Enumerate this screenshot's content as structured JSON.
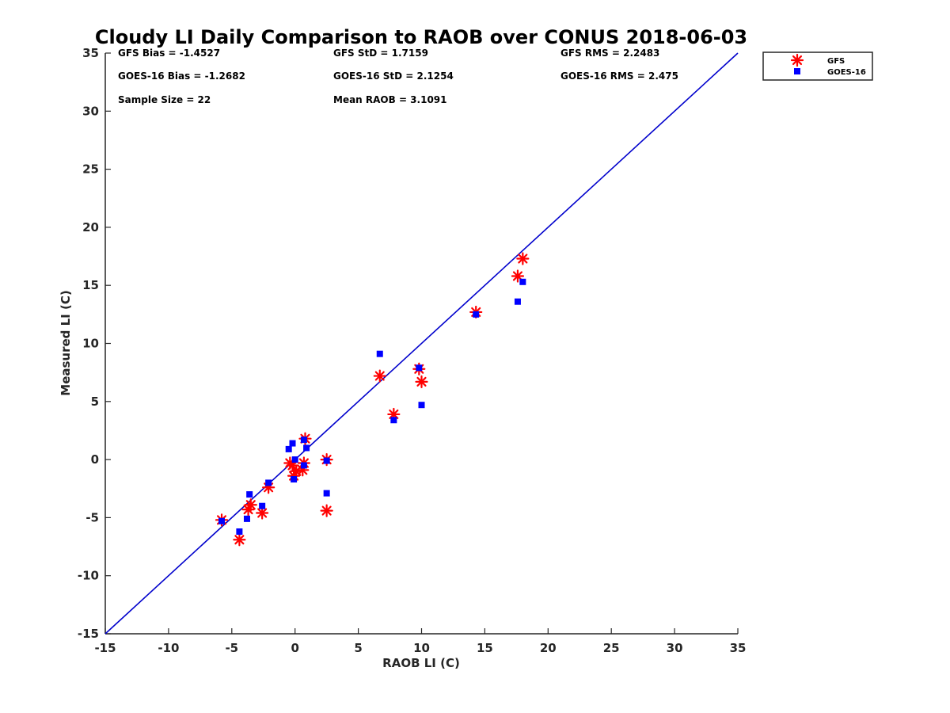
{
  "colors": {
    "gfs": "#ff0000",
    "goes": "#0000ff",
    "line": "#0000cc",
    "axis": "#262626"
  },
  "stats": {
    "gfs_bias": "GFS Bias = -1.4527",
    "gfs_std": "GFS StD = 1.7159",
    "gfs_rms": "GFS RMS = 2.2483",
    "goes_bias": "GOES-16 Bias = -1.2682",
    "goes_std": "GOES-16 StD = 2.1254",
    "goes_rms": "GOES-16 RMS = 2.475",
    "sample_size": "Sample Size = 22",
    "mean_raob": "Mean RAOB = 3.1091"
  },
  "chart_data": {
    "type": "scatter",
    "title": "Cloudy LI Daily Comparison to RAOB over CONUS 2018-06-03",
    "xlabel": "RAOB LI (C)",
    "ylabel": "Measured LI (C)",
    "xlim": [
      -15,
      35
    ],
    "ylim": [
      -15,
      35
    ],
    "xticks": [
      "-15",
      "-10",
      "-5",
      "0",
      "5",
      "10",
      "15",
      "20",
      "25",
      "30",
      "35"
    ],
    "yticks": [
      "-15",
      "-10",
      "-5",
      "0",
      "5",
      "10",
      "15",
      "20",
      "25",
      "30",
      "35"
    ],
    "grid": false,
    "legend_position": "outside-top-right",
    "reference_line": {
      "x": [
        -15,
        35
      ],
      "y": [
        -15,
        35
      ]
    },
    "series": [
      {
        "name": "GFS",
        "marker": "asterisk",
        "points": [
          [
            -5.8,
            -5.2
          ],
          [
            -4.4,
            -6.9
          ],
          [
            -3.7,
            -4.3
          ],
          [
            -3.5,
            -3.9
          ],
          [
            -2.6,
            -4.6
          ],
          [
            -2.1,
            -2.4
          ],
          [
            -0.4,
            -0.3
          ],
          [
            -0.1,
            -1.4
          ],
          [
            0.1,
            -1.0
          ],
          [
            0.6,
            -0.9
          ],
          [
            0.7,
            -0.3
          ],
          [
            0.8,
            1.8
          ],
          [
            2.5,
            0.0
          ],
          [
            2.5,
            -4.4
          ],
          [
            6.7,
            7.2
          ],
          [
            7.8,
            3.9
          ],
          [
            9.8,
            7.8
          ],
          [
            10.0,
            6.7
          ],
          [
            14.3,
            12.7
          ],
          [
            17.6,
            15.8
          ],
          [
            18.0,
            17.3
          ],
          [
            -0.2,
            -0.5
          ]
        ]
      },
      {
        "name": "GOES-16",
        "marker": "square",
        "points": [
          [
            -5.8,
            -5.3
          ],
          [
            -4.4,
            -6.2
          ],
          [
            -3.8,
            -5.1
          ],
          [
            -3.6,
            -3.0
          ],
          [
            -2.6,
            -4.0
          ],
          [
            -2.1,
            -2.0
          ],
          [
            -0.5,
            0.9
          ],
          [
            -0.2,
            1.4
          ],
          [
            -0.1,
            -1.7
          ],
          [
            0.0,
            0.0
          ],
          [
            0.7,
            1.7
          ],
          [
            0.7,
            -0.5
          ],
          [
            0.9,
            1.0
          ],
          [
            2.5,
            -0.1
          ],
          [
            2.5,
            -2.9
          ],
          [
            6.7,
            9.1
          ],
          [
            7.8,
            3.4
          ],
          [
            9.8,
            7.9
          ],
          [
            10.0,
            4.7
          ],
          [
            14.3,
            12.5
          ],
          [
            17.6,
            13.6
          ],
          [
            18.0,
            15.3
          ]
        ]
      }
    ]
  }
}
